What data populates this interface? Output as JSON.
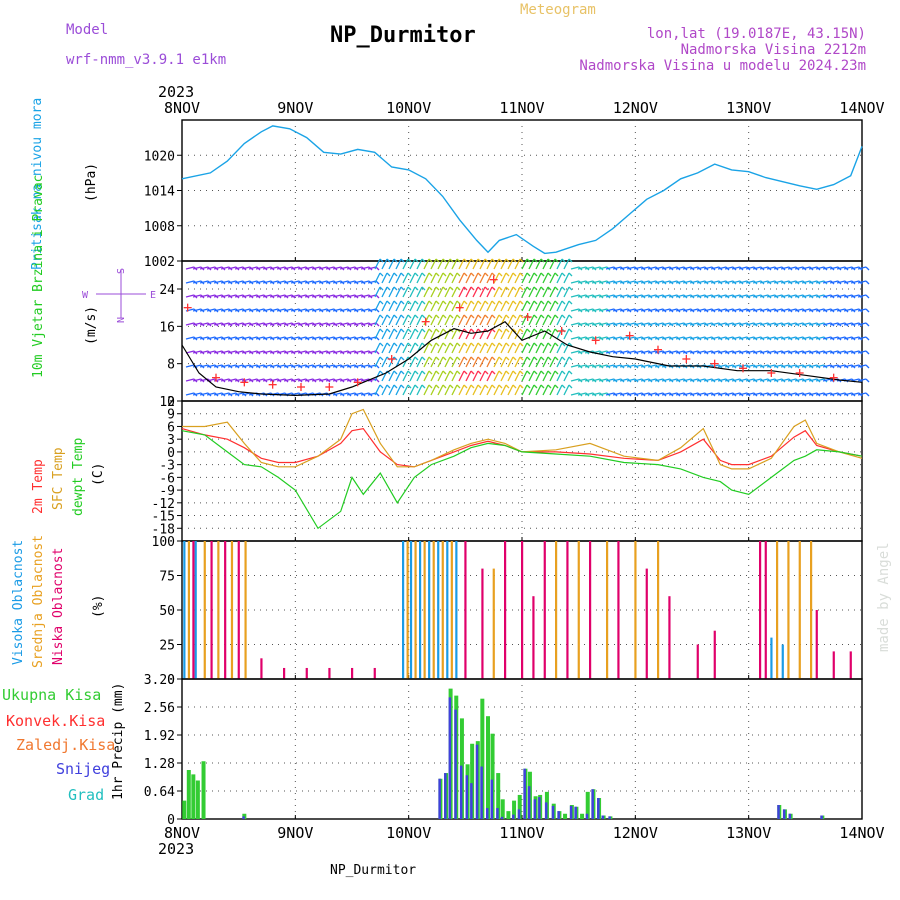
{
  "header": {
    "model_label": "Model",
    "model_name": "wrf-nmm_v3.9.1  e1km",
    "title": "NP_Durmitor",
    "subtitle": "Meteogram",
    "location": "lon,lat (19.0187E, 43.15N)",
    "elevation": "Nadmorska Visina 2212m",
    "model_elevation": "Nadmorska Visina u modelu 2024.23m",
    "credit": "made by Angel",
    "footer": "NP_Durmitor"
  },
  "colors": {
    "pressure": "#1aa3e6",
    "wind_speed": "#000000",
    "wind_gust": "#ff3030",
    "temp2m": "#ff3030",
    "sfc_temp": "#d9a020",
    "dewpt": "#22cc22",
    "cloud_high": "#1a9be6",
    "cloud_mid": "#e8a020",
    "cloud_low": "#e0006a",
    "precip_total": "#33cc33",
    "precip_snow": "#4040dd"
  },
  "chart_data": [
    {
      "type": "line",
      "title": "",
      "ylabel": "Pritisak na nivou mora",
      "unit": "(hPa)",
      "ylim": [
        1002,
        1026
      ],
      "yticks": [
        1002,
        1008,
        1014,
        1020
      ],
      "x_days": [
        0,
        0.25,
        0.4,
        0.55,
        0.7,
        0.8,
        0.95,
        1.1,
        1.25,
        1.4,
        1.55,
        1.7,
        1.85,
        2.0,
        2.15,
        2.3,
        2.45,
        2.6,
        2.7,
        2.8,
        2.95,
        3.1,
        3.2,
        3.3,
        3.5,
        3.65,
        3.8,
        3.95,
        4.1,
        4.25,
        4.4,
        4.55,
        4.7,
        4.85,
        5.0,
        5.15,
        5.3,
        5.45,
        5.6,
        5.75,
        5.9,
        6.0
      ],
      "values": [
        1016,
        1017,
        1019,
        1022,
        1024,
        1025,
        1024.5,
        1023,
        1020.5,
        1020.2,
        1021,
        1020.5,
        1018,
        1017.5,
        1016,
        1013,
        1009,
        1005.5,
        1003.5,
        1005.5,
        1006.5,
        1004.5,
        1003.3,
        1003.5,
        1004.8,
        1005.5,
        1007.5,
        1010,
        1012.5,
        1014,
        1016,
        1017,
        1018.5,
        1017.5,
        1017.2,
        1016.2,
        1015.5,
        1014.8,
        1014.2,
        1015,
        1016.5,
        1021.5
      ]
    },
    {
      "type": "line",
      "title": "",
      "ylabel": "10m Vjetar Brzina i Pravac",
      "unit": "(m/s)",
      "ylim": [
        0,
        30
      ],
      "yticks": [
        0,
        8,
        16,
        24
      ],
      "compass": [
        "W",
        "E",
        "N",
        "S"
      ],
      "series": [
        {
          "x_days": [
            0,
            0.15,
            0.3,
            0.5,
            0.7,
            1.0,
            1.3,
            1.5,
            1.8,
            2.0,
            2.2,
            2.4,
            2.55,
            2.7,
            2.85,
            3.0,
            3.2,
            3.4,
            3.6,
            3.8,
            4.0,
            4.3,
            4.6,
            4.9,
            5.2,
            5.5,
            5.8,
            6.0
          ],
          "values": [
            12,
            6,
            3,
            2,
            1.5,
            1.2,
            1.5,
            3,
            6,
            9,
            13,
            15.5,
            14.5,
            15,
            17,
            13,
            15,
            12,
            10.5,
            9.5,
            9,
            7.5,
            7.5,
            6.5,
            6.5,
            5.5,
            4.5,
            4
          ]
        },
        {
          "x_days": [
            0.05,
            0.3,
            0.55,
            0.8,
            1.05,
            1.3,
            1.55,
            1.85,
            2.15,
            2.45,
            2.75,
            3.05,
            3.35,
            3.65,
            3.95,
            4.2,
            4.45,
            4.7,
            4.95,
            5.2,
            5.45,
            5.75
          ],
          "values": [
            20,
            5,
            4,
            3.5,
            3,
            3,
            4,
            9,
            17,
            20,
            26,
            18,
            15,
            13,
            14,
            11,
            9,
            8,
            7,
            6,
            6,
            5
          ]
        }
      ]
    },
    {
      "type": "line",
      "title": "",
      "ylabel": "2m Temp / SFC Temp / dewpt Temp",
      "unit": "(C)",
      "ylim": [
        -21,
        12
      ],
      "yticks": [
        -18,
        -15,
        -12,
        -9,
        -6,
        -3,
        0,
        3,
        6,
        9,
        12
      ],
      "x_days": [
        0,
        0.2,
        0.4,
        0.55,
        0.7,
        0.85,
        1.0,
        1.2,
        1.4,
        1.5,
        1.6,
        1.75,
        1.9,
        2.05,
        2.2,
        2.4,
        2.55,
        2.7,
        2.85,
        3.0,
        3.3,
        3.6,
        3.9,
        4.2,
        4.4,
        4.6,
        4.75,
        4.85,
        5.0,
        5.2,
        5.4,
        5.5,
        5.6,
        5.8,
        6.0
      ],
      "series": [
        {
          "name": "2m Temp",
          "values": [
            5.5,
            4,
            3,
            1,
            -1.5,
            -2.5,
            -2.5,
            -1,
            2,
            5,
            5.5,
            0,
            -3,
            -3.5,
            -2,
            0,
            1.5,
            2.5,
            1.5,
            0,
            0,
            -0.5,
            -1.5,
            -2,
            0,
            3,
            -2,
            -3,
            -3,
            -1,
            3.5,
            5,
            1.5,
            0,
            -1
          ]
        },
        {
          "name": "SFC Temp",
          "values": [
            6,
            6,
            7,
            2,
            -2.5,
            -3.5,
            -3.5,
            -1,
            3,
            9,
            10,
            2,
            -3.5,
            -3.5,
            -2,
            0.5,
            2,
            3,
            2,
            0,
            0.5,
            2,
            -1,
            -2,
            1,
            5.5,
            -3,
            -4,
            -4,
            -1.5,
            6,
            7.5,
            2,
            0,
            -1.5
          ]
        },
        {
          "name": "dewpt Temp",
          "values": [
            5,
            4,
            0,
            -3,
            -3.5,
            -6,
            -9,
            -18,
            -14,
            -6,
            -10,
            -5,
            -12,
            -6,
            -3,
            -1,
            1,
            2,
            1.5,
            0,
            -0.5,
            -1,
            -2.5,
            -3,
            -4,
            -6,
            -7,
            -9,
            -10,
            -6,
            -2,
            -1,
            0.5,
            0,
            -1
          ]
        }
      ]
    },
    {
      "type": "bar",
      "title": "",
      "ylabel": "Visoka Oblacnost / Srednja Oblacnost / Niska Oblacnost",
      "unit": "(%)",
      "ylim": [
        0,
        100
      ],
      "yticks": [
        0,
        25,
        50,
        75,
        100
      ],
      "series": [
        {
          "name": "Visoka Oblacnost",
          "x_days": [
            0.02,
            0.12,
            1.95,
            2.02,
            2.1,
            2.18,
            2.26,
            2.34,
            2.42,
            5.2,
            5.3
          ],
          "values": [
            100,
            100,
            100,
            100,
            100,
            100,
            100,
            100,
            100,
            30,
            25
          ]
        },
        {
          "name": "Srednja Oblacnost",
          "x_days": [
            0.06,
            0.2,
            0.32,
            0.44,
            0.56,
            1.99,
            2.06,
            2.14,
            2.22,
            2.3,
            2.38,
            2.75,
            3.3,
            3.5,
            3.75,
            4.0,
            4.2,
            5.25,
            5.35,
            5.45,
            5.55
          ],
          "values": [
            100,
            100,
            100,
            100,
            100,
            100,
            100,
            100,
            100,
            100,
            100,
            80,
            100,
            100,
            100,
            100,
            100,
            100,
            100,
            100,
            100
          ]
        },
        {
          "name": "Niska Oblacnost",
          "x_days": [
            0.1,
            0.26,
            0.38,
            0.5,
            0.7,
            0.9,
            1.1,
            1.3,
            1.5,
            1.7,
            2.5,
            2.65,
            2.85,
            3.0,
            3.1,
            3.2,
            3.4,
            3.6,
            3.85,
            4.1,
            4.3,
            4.55,
            4.7,
            5.1,
            5.15,
            5.6,
            5.75,
            5.9
          ],
          "values": [
            100,
            100,
            100,
            100,
            15,
            8,
            8,
            8,
            8,
            8,
            100,
            80,
            100,
            100,
            60,
            100,
            100,
            100,
            100,
            80,
            60,
            25,
            35,
            100,
            100,
            50,
            20,
            20
          ]
        }
      ]
    },
    {
      "type": "bar",
      "title": "",
      "ylabel": "1hr Precip",
      "unit": "(mm)",
      "ylim": [
        0,
        3.2
      ],
      "yticks": [
        0,
        0.64,
        1.28,
        1.92,
        2.56,
        3.2
      ],
      "legend": [
        "Ukupna Kisa",
        "Konvek.Kisa",
        "Zaledj.Kisa",
        "Snijeg",
        "Grad"
      ],
      "x_days": [
        0.02,
        0.06,
        0.1,
        0.14,
        0.19,
        0.55,
        2.28,
        2.33,
        2.37,
        2.42,
        2.47,
        2.52,
        2.56,
        2.61,
        2.65,
        2.7,
        2.74,
        2.79,
        2.83,
        2.88,
        2.93,
        2.98,
        3.03,
        3.07,
        3.12,
        3.16,
        3.22,
        3.28,
        3.33,
        3.38,
        3.44,
        3.48,
        3.53,
        3.58,
        3.63,
        3.68,
        3.72,
        3.78,
        5.27,
        5.32,
        5.37,
        5.65
      ],
      "total": [
        0.42,
        1.12,
        1.02,
        0.88,
        1.32,
        0.12,
        0.92,
        1.05,
        2.98,
        2.82,
        2.3,
        1.25,
        1.72,
        1.78,
        2.75,
        2.35,
        1.95,
        1.05,
        0.45,
        0.18,
        0.42,
        0.55,
        1.15,
        1.08,
        0.52,
        0.55,
        0.62,
        0.35,
        0.18,
        0.12,
        0.32,
        0.28,
        0.12,
        0.62,
        0.68,
        0.48,
        0.08,
        0.06,
        0.32,
        0.22,
        0.12,
        0.08
      ],
      "snow": [
        0,
        0,
        0,
        0,
        0,
        0.06,
        0.92,
        1.05,
        2.78,
        2.5,
        1.22,
        1.0,
        0.82,
        1.7,
        1.2,
        0.25,
        0.9,
        0.25,
        0.05,
        0,
        0.1,
        0.22,
        1.15,
        0.75,
        0.45,
        0.5,
        0.38,
        0.3,
        0.18,
        0,
        0.3,
        0.28,
        0,
        0.12,
        0.68,
        0.48,
        0.08,
        0.06,
        0.32,
        0.22,
        0.12,
        0.08
      ]
    }
  ],
  "x_axis": {
    "year": "2023",
    "labels": [
      "8NOV",
      "9NOV",
      "10NOV",
      "11NOV",
      "12NOV",
      "13NOV",
      "14NOV"
    ]
  }
}
